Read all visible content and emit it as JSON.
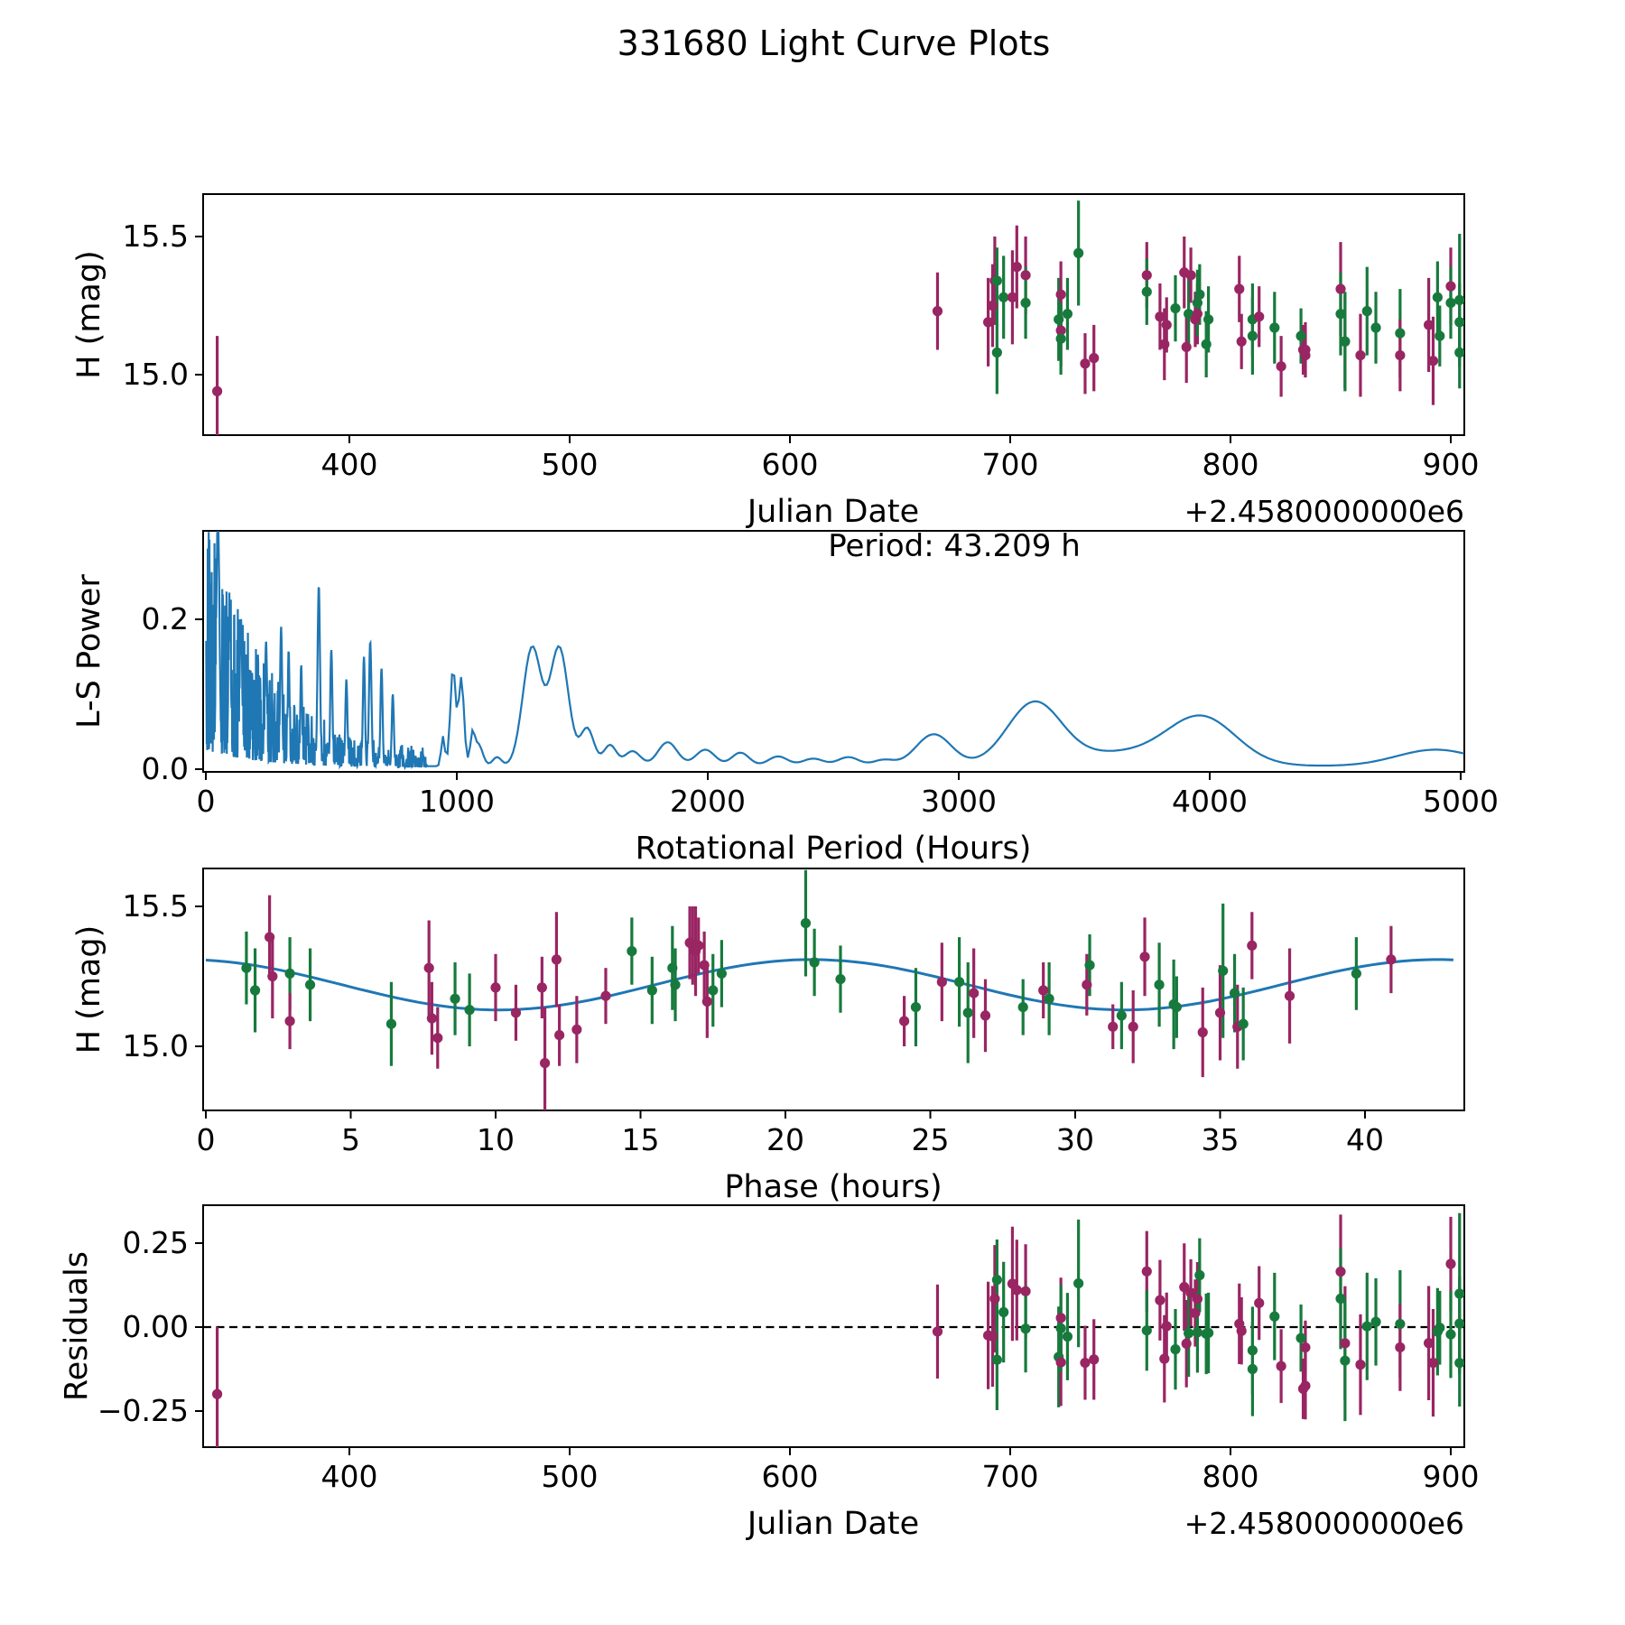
{
  "title": "331680 Light Curve Plots",
  "colors": {
    "session_green": "#177a3c",
    "session_purple": "#992563",
    "curve_blue": "#1f77b4",
    "zero_line_black": "#000000"
  },
  "chart_data": {
    "type": "multi-panel-light-curve",
    "panels": [
      {
        "id": "jd_lightcurve",
        "type": "scatter-errorbar",
        "xlabel": "Julian Date",
        "ylabel": "H (mag)",
        "x_offset_label": "+2.4580000000e6",
        "xticks": [
          400,
          500,
          600,
          700,
          800,
          900
        ],
        "yticks": [
          {
            "v": 15.0,
            "l": "15.0"
          },
          {
            "v": 15.5,
            "l": "15.5"
          }
        ],
        "xlim": [
          333,
          906
        ],
        "ylim": [
          14.78,
          15.655
        ],
        "grid": false
      },
      {
        "id": "periodogram",
        "type": "line",
        "xlabel": "Rotational Period (Hours)",
        "ylabel": "L-S Power",
        "annotation": "Period: 43.209 h",
        "best_period_hours": 43.209,
        "xticks": [
          0,
          1000,
          2000,
          3000,
          4000,
          5000
        ],
        "yticks": [
          {
            "v": 0.0,
            "l": "0.0"
          },
          {
            "v": 0.2,
            "l": "0.2"
          }
        ],
        "xlim": [
          0,
          5014
        ],
        "ylim": [
          0,
          0.318
        ],
        "grid": false,
        "main_peaks": [
          {
            "period_hours": 48,
            "power": 0.34
          },
          {
            "period_hours": 300,
            "power": 0.19
          },
          {
            "period_hours": 450,
            "power": 0.245
          },
          {
            "period_hours": 655,
            "power": 0.17
          },
          {
            "period_hours": 985,
            "power": 0.131
          },
          {
            "period_hours": 1018,
            "power": 0.118
          },
          {
            "period_hours": 1300,
            "power": 0.158
          },
          {
            "period_hours": 1408,
            "power": 0.158
          },
          {
            "period_hours": 2900,
            "power": 0.042
          },
          {
            "period_hours": 3300,
            "power": 0.078
          },
          {
            "period_hours": 3970,
            "power": 0.058
          },
          {
            "period_hours": 4900,
            "power": 0.022
          }
        ]
      },
      {
        "id": "phased_lightcurve",
        "type": "scatter-errorbar-with-fit",
        "xlabel": "Phase (hours)",
        "ylabel": "H (mag)",
        "xticks": [
          0,
          5,
          10,
          15,
          20,
          25,
          30,
          35,
          40
        ],
        "yticks": [
          {
            "v": 15.0,
            "l": "15.0"
          },
          {
            "v": 15.5,
            "l": "15.5"
          }
        ],
        "xlim": [
          0,
          43.4
        ],
        "ylim": [
          14.77,
          15.635
        ],
        "grid": false,
        "fit": {
          "shape": "sinusoid",
          "mean_mag": 15.22,
          "amplitude_mag": 0.09,
          "sine_period_hours": 21.6045,
          "rotation_period_hours": 43.209,
          "phase_of_max_hours": 20.9
        }
      },
      {
        "id": "residuals",
        "type": "scatter-errorbar",
        "xlabel": "Julian Date",
        "ylabel": "Residuals",
        "x_offset_label": "+2.4580000000e6",
        "xticks": [
          400,
          500,
          600,
          700,
          800,
          900
        ],
        "yticks": [
          {
            "v": -0.25,
            "l": "−0.25"
          },
          {
            "v": 0.0,
            "l": "0.00"
          },
          {
            "v": 0.25,
            "l": "0.25"
          }
        ],
        "xlim": [
          333,
          906
        ],
        "ylim": [
          -0.357,
          0.363
        ],
        "zero_line": 0.0,
        "grid": false
      }
    ],
    "point_fields": [
      "julian_date_minus_2458000",
      "phase_hours",
      "h_mag",
      "h_mag_err",
      "color_key"
    ],
    "points": [
      [
        340,
        11.7,
        14.94,
        0.2,
        "p"
      ],
      [
        667,
        25.4,
        15.23,
        0.14,
        "p"
      ],
      [
        690,
        26.5,
        15.19,
        0.16,
        "p"
      ],
      [
        692,
        2.3,
        15.25,
        0.15,
        "p"
      ],
      [
        693,
        16.9,
        15.34,
        0.16,
        "p"
      ],
      [
        694,
        14.7,
        15.34,
        0.12,
        "g"
      ],
      [
        694,
        6.4,
        15.08,
        0.15,
        "g"
      ],
      [
        697,
        16.1,
        15.28,
        0.15,
        "g"
      ],
      [
        701,
        7.7,
        15.28,
        0.17,
        "p"
      ],
      [
        703,
        2.2,
        15.39,
        0.15,
        "p"
      ],
      [
        707,
        16.8,
        15.36,
        0.14,
        "p"
      ],
      [
        707,
        2.9,
        15.26,
        0.13,
        "g"
      ],
      [
        722,
        1.7,
        15.2,
        0.15,
        "g"
      ],
      [
        723,
        17.2,
        15.29,
        0.12,
        "p"
      ],
      [
        723,
        17.3,
        15.16,
        0.13,
        "p"
      ],
      [
        723,
        9.1,
        15.13,
        0.13,
        "g"
      ],
      [
        726,
        3.6,
        15.22,
        0.13,
        "g"
      ],
      [
        731,
        20.7,
        15.44,
        0.19,
        "g"
      ],
      [
        734,
        12.2,
        15.04,
        0.11,
        "p"
      ],
      [
        738,
        12.8,
        15.06,
        0.12,
        "p"
      ],
      [
        762,
        36.1,
        15.36,
        0.12,
        "p"
      ],
      [
        762,
        21.0,
        15.3,
        0.12,
        "g"
      ],
      [
        768,
        10.0,
        15.21,
        0.12,
        "p"
      ],
      [
        770,
        26.9,
        15.11,
        0.13,
        "p"
      ],
      [
        771,
        13.8,
        15.18,
        0.1,
        "p"
      ],
      [
        775,
        21.9,
        15.24,
        0.12,
        "g"
      ],
      [
        779,
        16.7,
        15.37,
        0.13,
        "p"
      ],
      [
        780,
        7.8,
        15.1,
        0.13,
        "p"
      ],
      [
        781,
        16.2,
        15.22,
        0.13,
        "g"
      ],
      [
        782,
        17.0,
        15.36,
        0.1,
        "p"
      ],
      [
        784,
        28.9,
        15.2,
        0.1,
        "p"
      ],
      [
        785,
        30.4,
        15.22,
        0.11,
        "p"
      ],
      [
        785,
        17.8,
        15.26,
        0.12,
        "g"
      ],
      [
        786,
        30.5,
        15.29,
        0.11,
        "g"
      ],
      [
        789,
        31.6,
        15.11,
        0.12,
        "g"
      ],
      [
        790,
        15.4,
        15.2,
        0.12,
        "g"
      ],
      [
        804,
        40.9,
        15.31,
        0.12,
        "p"
      ],
      [
        805,
        10.7,
        15.12,
        0.1,
        "p"
      ],
      [
        810,
        17.5,
        15.2,
        0.13,
        "g"
      ],
      [
        810,
        24.5,
        15.14,
        0.14,
        "g"
      ],
      [
        813,
        11.6,
        15.21,
        0.11,
        "p"
      ],
      [
        820,
        8.6,
        15.17,
        0.13,
        "g"
      ],
      [
        823,
        8.0,
        15.03,
        0.11,
        "p"
      ],
      [
        832,
        28.2,
        15.14,
        0.1,
        "g"
      ],
      [
        833,
        24.1,
        15.09,
        0.09,
        "p"
      ],
      [
        834,
        2.9,
        15.09,
        0.1,
        "p"
      ],
      [
        834,
        31.3,
        15.07,
        0.08,
        "p"
      ],
      [
        850,
        12.1,
        15.31,
        0.17,
        "p"
      ],
      [
        850,
        32.9,
        15.22,
        0.15,
        "g"
      ],
      [
        852,
        35.0,
        15.12,
        0.17,
        "p"
      ],
      [
        852,
        26.3,
        15.12,
        0.18,
        "g"
      ],
      [
        859,
        35.6,
        15.07,
        0.15,
        "p"
      ],
      [
        862,
        26.0,
        15.23,
        0.16,
        "g"
      ],
      [
        866,
        29.1,
        15.17,
        0.13,
        "g"
      ],
      [
        877,
        33.4,
        15.15,
        0.16,
        "g"
      ],
      [
        877,
        32.0,
        15.07,
        0.13,
        "p"
      ],
      [
        890,
        37.4,
        15.18,
        0.17,
        "p"
      ],
      [
        892,
        34.4,
        15.05,
        0.16,
        "p"
      ],
      [
        894,
        1.4,
        15.28,
        0.13,
        "g"
      ],
      [
        895,
        33.5,
        15.14,
        0.11,
        "g"
      ],
      [
        900,
        32.4,
        15.32,
        0.14,
        "p"
      ],
      [
        900,
        39.7,
        15.26,
        0.13,
        "g"
      ],
      [
        904,
        35.5,
        15.19,
        0.14,
        "g"
      ],
      [
        904,
        35.8,
        15.08,
        0.13,
        "g"
      ],
      [
        904,
        35.1,
        15.27,
        0.24,
        "g"
      ]
    ]
  }
}
